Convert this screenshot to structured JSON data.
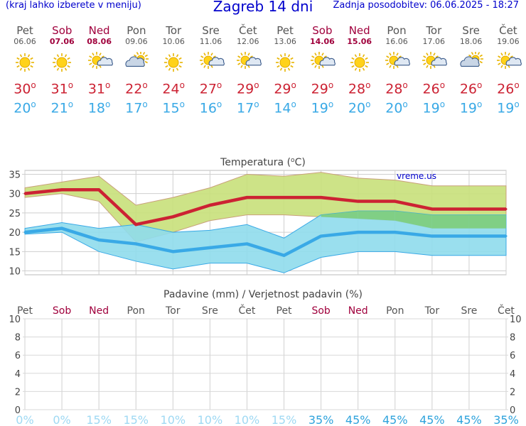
{
  "header": {
    "left_note": "(kraj lahko izberete v meniju)",
    "title": "Zagreb 14 dni",
    "updated": "Zadnja posodobitev: 06.06.2025 - 18:27"
  },
  "days": [
    {
      "name": "Pet",
      "date": "06.06",
      "weekend": false,
      "icon": "sun",
      "max": "30",
      "min": "20",
      "prob": "0%"
    },
    {
      "name": "Sob",
      "date": "07.06",
      "weekend": true,
      "icon": "sun",
      "max": "31",
      "min": "21",
      "prob": "0%"
    },
    {
      "name": "Ned",
      "date": "08.06",
      "weekend": true,
      "icon": "sun-cloud",
      "max": "31",
      "min": "18",
      "prob": "15%"
    },
    {
      "name": "Pon",
      "date": "09.06",
      "weekend": false,
      "icon": "cloud-sun",
      "max": "22",
      "min": "17",
      "prob": "15%"
    },
    {
      "name": "Tor",
      "date": "10.06",
      "weekend": false,
      "icon": "sun",
      "max": "24",
      "min": "15",
      "prob": "10%"
    },
    {
      "name": "Sre",
      "date": "11.06",
      "weekend": false,
      "icon": "sun-cloud",
      "max": "27",
      "min": "16",
      "prob": "10%"
    },
    {
      "name": "Čet",
      "date": "12.06",
      "weekend": false,
      "icon": "sun-cloud",
      "max": "29",
      "min": "17",
      "prob": "10%"
    },
    {
      "name": "Pet",
      "date": "13.06",
      "weekend": false,
      "icon": "sun",
      "max": "29",
      "min": "14",
      "prob": "15%"
    },
    {
      "name": "Sob",
      "date": "14.06",
      "weekend": true,
      "icon": "sun-cloud",
      "max": "29",
      "min": "19",
      "prob": "35%"
    },
    {
      "name": "Ned",
      "date": "15.06",
      "weekend": true,
      "icon": "sun",
      "max": "28",
      "min": "20",
      "prob": "45%"
    },
    {
      "name": "Pon",
      "date": "16.06",
      "weekend": false,
      "icon": "sun-cloud",
      "max": "28",
      "min": "20",
      "prob": "45%"
    },
    {
      "name": "Tor",
      "date": "17.06",
      "weekend": false,
      "icon": "sun-cloud",
      "max": "26",
      "min": "19",
      "prob": "45%"
    },
    {
      "name": "Sre",
      "date": "18.06",
      "weekend": false,
      "icon": "cloud-sun",
      "max": "26",
      "min": "19",
      "prob": "45%"
    },
    {
      "name": "Čet",
      "date": "19.06",
      "weekend": false,
      "icon": "sun-cloud",
      "max": "26",
      "min": "19",
      "prob": "35%"
    }
  ],
  "degree_mark": "o",
  "colors": {
    "max": "#cc2233",
    "min": "#39a9e6",
    "weekend": "#a0003c",
    "max_band": "#c8e07a",
    "min_band": "#8fdcec",
    "overlap": "#7ccc74",
    "prob_light": "#9fd9f3",
    "prob_dark": "#2fa3dc",
    "link": "#0000cc"
  },
  "chart_data": [
    {
      "type": "line",
      "title": "Temperatura (°C)",
      "title_main": "Temperatura (",
      "title_deg": "o",
      "title_unit": "C)",
      "watermark": "vreme.us",
      "ylim": [
        9,
        36
      ],
      "yticks": [
        "35",
        "30",
        "25",
        "20",
        "15",
        "10"
      ],
      "categories": [
        "06.06",
        "07.06",
        "08.06",
        "09.06",
        "10.06",
        "11.06",
        "12.06",
        "13.06",
        "14.06",
        "15.06",
        "16.06",
        "17.06",
        "18.06",
        "19.06"
      ],
      "series": [
        {
          "role": "max",
          "values": [
            30,
            31,
            31,
            22,
            24,
            27,
            29,
            29,
            29,
            28,
            28,
            26,
            26,
            26
          ]
        },
        {
          "role": "max_band_top",
          "values": [
            31.5,
            33,
            34.5,
            27,
            29,
            31.5,
            35,
            34.5,
            35.5,
            34,
            33.5,
            32,
            32,
            32
          ]
        },
        {
          "role": "max_band_bottom",
          "values": [
            29,
            30,
            28,
            17.5,
            20,
            23,
            24.5,
            24.5,
            24,
            23.5,
            23,
            21,
            21,
            21
          ]
        },
        {
          "role": "min",
          "values": [
            20,
            21,
            18,
            17,
            15,
            16,
            17,
            14,
            19,
            20,
            20,
            19,
            19,
            19
          ]
        },
        {
          "role": "min_band_top",
          "values": [
            21,
            22.5,
            21,
            22,
            20,
            20.5,
            22,
            18.5,
            24.5,
            25.5,
            25.5,
            24.5,
            24.5,
            24.5
          ]
        },
        {
          "role": "min_band_bottom",
          "values": [
            19.5,
            20,
            15,
            12.5,
            10.5,
            12,
            12,
            9.5,
            13.5,
            15,
            15,
            14,
            14,
            14
          ]
        }
      ],
      "grid": true
    },
    {
      "type": "bar",
      "title": "Padavine (mm) / Verjetnost padavin (%)",
      "ylim": [
        0,
        10
      ],
      "yticks": [
        "10",
        "8",
        "6",
        "4",
        "2",
        "0"
      ],
      "categories": [
        "Pet",
        "Sob",
        "Ned",
        "Pon",
        "Tor",
        "Sre",
        "Čet",
        "Pet",
        "Sob",
        "Ned",
        "Pon",
        "Tor",
        "Sre",
        "Čet"
      ],
      "values": [
        0,
        0,
        0,
        0,
        0,
        0,
        0,
        0,
        0,
        0,
        0,
        0,
        0,
        0
      ],
      "probability_percent": [
        0,
        0,
        15,
        15,
        10,
        10,
        10,
        15,
        35,
        45,
        45,
        45,
        45,
        35
      ],
      "grid": true
    }
  ]
}
